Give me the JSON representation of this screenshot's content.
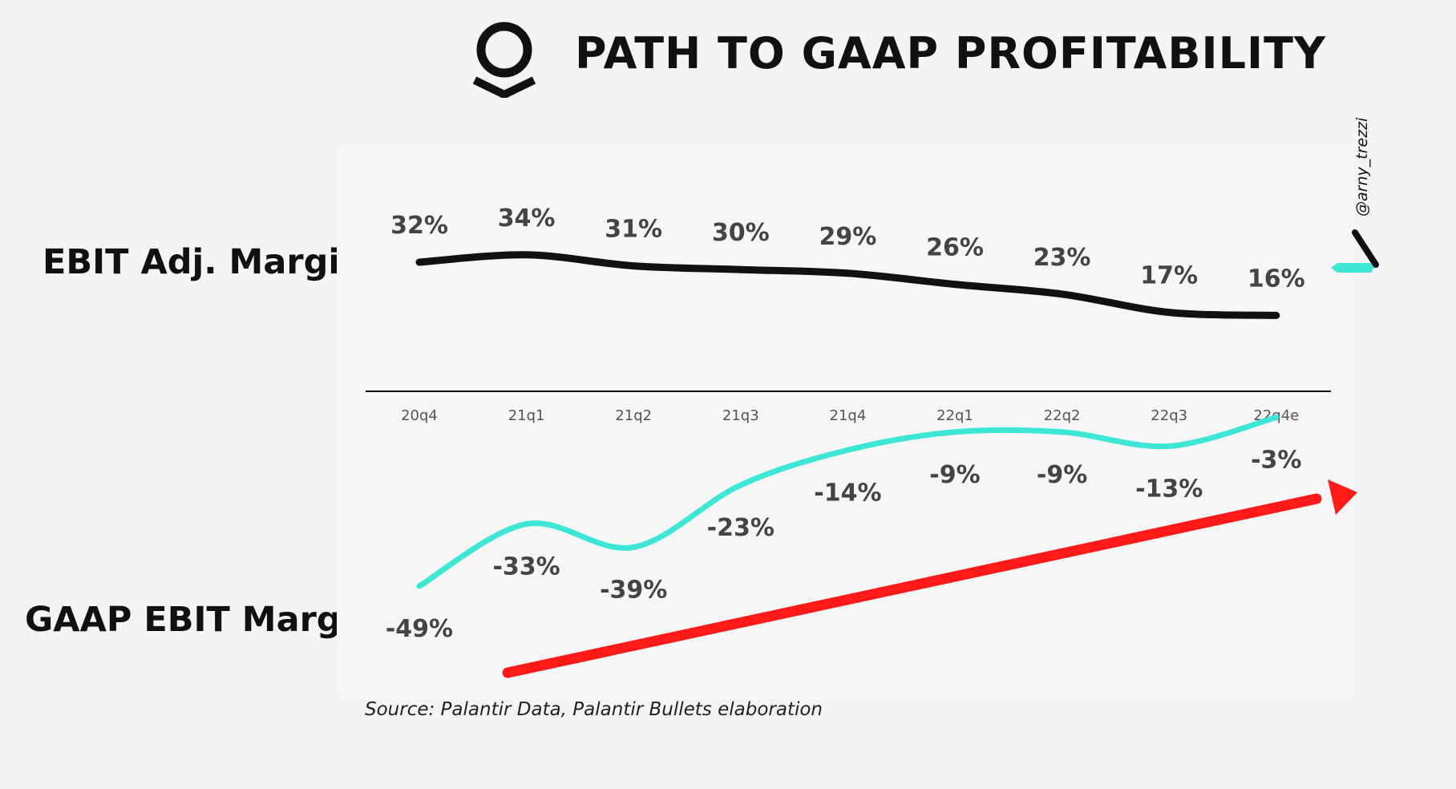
{
  "header": {
    "title": "PATH TO GAAP PROFITABILITY",
    "logo_icon": "palantir-logo-icon"
  },
  "labels": {
    "top_series": "EBIT Adj. Margin",
    "bottom_series": "GAAP EBIT Margin"
  },
  "source": "Source: Palantir Data, Palantir Bullets elaboration",
  "credit": "@arny_trezzi",
  "colors": {
    "background": "#f4f4f4",
    "adj_line": "#111111",
    "gaap_line": "#3ee6d6",
    "trend_arrow": "#ff1a1a",
    "value_text": "#444444"
  },
  "chart_data": {
    "type": "line",
    "title": "PATH TO GAAP PROFITABILITY",
    "categories": [
      "20q4",
      "21q1",
      "21q2",
      "21q3",
      "21q4",
      "22q1",
      "22q2",
      "22q3",
      "22q4e"
    ],
    "series": [
      {
        "name": "EBIT Adj. Margin",
        "values": [
          32,
          34,
          31,
          30,
          29,
          26,
          23,
          17,
          16
        ],
        "labels": [
          "32%",
          "34%",
          "31%",
          "30%",
          "29%",
          "26%",
          "23%",
          "17%",
          "16%"
        ]
      },
      {
        "name": "GAAP EBIT Margin",
        "values": [
          -49,
          -33,
          -39,
          -23,
          -14,
          -9,
          -9,
          -13,
          -3
        ],
        "labels": [
          "-49%",
          "-33%",
          "-39%",
          "-23%",
          "-14%",
          "-9%",
          "-9%",
          "-13%",
          "-3%"
        ]
      }
    ],
    "annotation": "upward trend arrow",
    "xlabel": "",
    "ylabel": "",
    "grid": false,
    "legend": "none"
  }
}
